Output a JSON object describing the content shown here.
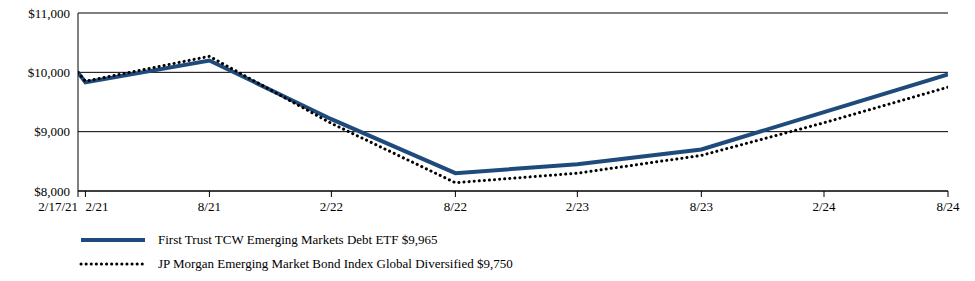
{
  "chart_data": {
    "type": "line",
    "x": [
      "2/17/21",
      "2/21",
      "8/21",
      "2/22",
      "8/22",
      "2/23",
      "8/23",
      "2/24",
      "8/24"
    ],
    "xlim": [
      "2/17/21",
      "8/24"
    ],
    "xticks": [
      "2/17/21",
      "2/21",
      "8/21",
      "2/22",
      "8/22",
      "2/23",
      "8/23",
      "2/24",
      "8/24"
    ],
    "ylim": [
      8000,
      11000
    ],
    "yticks": [
      {
        "value": 8000,
        "label": "$8,000"
      },
      {
        "value": 9000,
        "label": "$9,000"
      },
      {
        "value": 10000,
        "label": "$10,000"
      },
      {
        "value": 11000,
        "label": "$11,000"
      }
    ],
    "grid": true,
    "legend": "bottom",
    "series": [
      {
        "name": "First Trust TCW Emerging Markets Debt ETF $9,965",
        "color": "#1f4b7c",
        "line_style": "solid",
        "values": [
          10000,
          9830,
          10200,
          9210,
          8300,
          8450,
          8700,
          9330,
          9965
        ]
      },
      {
        "name": "JP Morgan Emerging Market Bond Index Global Diversified $9,750",
        "color": "#000000",
        "line_style": "dotted",
        "values": [
          10000,
          9850,
          10270,
          9140,
          8140,
          8300,
          8600,
          9150,
          9750
        ]
      }
    ]
  }
}
